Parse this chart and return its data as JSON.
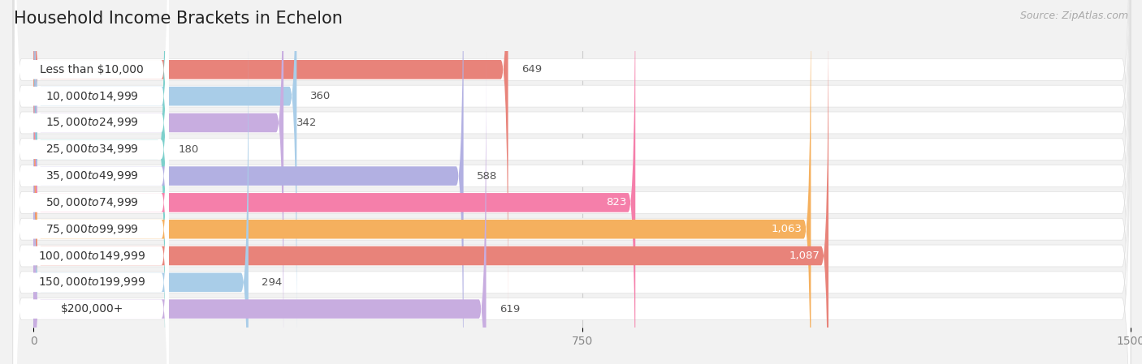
{
  "title": "Household Income Brackets in Echelon",
  "source": "Source: ZipAtlas.com",
  "categories": [
    "Less than $10,000",
    "$10,000 to $14,999",
    "$15,000 to $24,999",
    "$25,000 to $34,999",
    "$35,000 to $49,999",
    "$50,000 to $74,999",
    "$75,000 to $99,999",
    "$100,000 to $149,999",
    "$150,000 to $199,999",
    "$200,000+"
  ],
  "values": [
    649,
    360,
    342,
    180,
    588,
    823,
    1063,
    1087,
    294,
    619
  ],
  "bar_colors": [
    "#e8837a",
    "#a9cde8",
    "#c8ade0",
    "#7dd0cc",
    "#b2b0e2",
    "#f57faa",
    "#f5b05e",
    "#e8837a",
    "#a9cde8",
    "#c8ade0"
  ],
  "xlim": [
    -30,
    1500
  ],
  "xticks": [
    0,
    750,
    1500
  ],
  "background_color": "#f2f2f2",
  "row_bg_color": "#ffffff",
  "label_color_dark": "#555555",
  "label_color_white": "#ffffff",
  "white_label_threshold": 800,
  "title_fontsize": 15,
  "source_fontsize": 9,
  "bar_label_fontsize": 9.5,
  "category_label_fontsize": 10,
  "tick_fontsize": 10
}
